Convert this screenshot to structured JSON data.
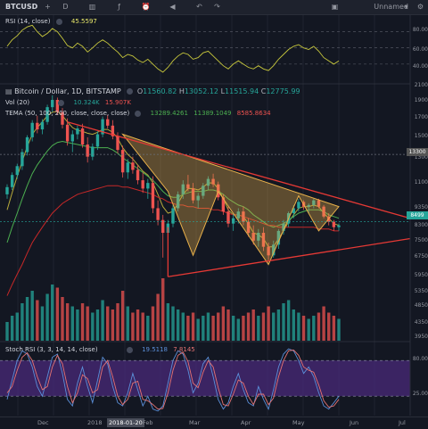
{
  "toolbar": {
    "symbol": "BTCUSD",
    "layout_name": "Unnamed",
    "icons": [
      "plus-icon",
      "interval-icon",
      "bars-style-icon",
      "fx-icon",
      "alert-icon",
      "replay-icon",
      "undo-icon",
      "redo-icon",
      "layout-icon"
    ]
  },
  "rsi": {
    "label": "RSI (14, close)",
    "value": "45.5597",
    "levels": [
      "80.00",
      "60.00",
      "40.00"
    ],
    "color": "#c8c83c"
  },
  "main": {
    "title": "Bitcoin / Dollar, 1D, BITSTAMP",
    "ohlc": [
      {
        "k": "O",
        "v": "11560.82"
      },
      {
        "k": "H",
        "v": "13052.12"
      },
      {
        "k": "L",
        "v": "11515.94"
      },
      {
        "k": "C",
        "v": "12775.99"
      }
    ],
    "vol_label": "Vol (20)",
    "vol_values": [
      "10.324K",
      "15.907K"
    ],
    "tema_label": "TEMA (50, 100, 200, close, close, close)",
    "tema_values": [
      "13289.4261",
      "11389.1049",
      "8585.8634"
    ],
    "price_ticks": [
      "2100",
      "1900",
      "1700",
      "1500",
      "1300",
      "1100",
      "9350",
      "8300",
      "7500",
      "6750",
      "5950",
      "5350",
      "4850",
      "4350",
      "3950"
    ],
    "price_tags": [
      "13300",
      "8499"
    ]
  },
  "stoch": {
    "label": "Stoch RSI (3, 3, 14, 14, close)",
    "values": [
      "19.5118",
      "7.8145"
    ],
    "levels": [
      "80.00",
      "25.00"
    ]
  },
  "time_axis": {
    "labels": [
      "Dec",
      "2018",
      "2018-01-20",
      "Feb",
      "Mar",
      "Apr",
      "May",
      "Jun",
      "Jul"
    ]
  },
  "colors": {
    "up": "#26a69a",
    "down": "#ef5350",
    "tema50": "#b5a83a",
    "tema100": "#4caf50",
    "tema200": "#c62828",
    "triangle": "#e53935",
    "pattern": "#e8b04a",
    "stoch_k": "#5b8fd9",
    "stoch_d": "#e57373"
  },
  "chart_data": {
    "type": "candlestick",
    "title": "Bitcoin / Dollar, 1D, BITSTAMP",
    "ylabel": "",
    "ylim": [
      3950,
      21000
    ],
    "ohlc": [
      [
        10200,
        10900,
        9900,
        10700
      ],
      [
        10700,
        11800,
        10500,
        11600
      ],
      [
        11600,
        12500,
        11300,
        12300
      ],
      [
        12300,
        13800,
        12000,
        13500
      ],
      [
        13500,
        15100,
        13200,
        14900
      ],
      [
        14900,
        16700,
        14500,
        16400
      ],
      [
        16400,
        17200,
        15300,
        15700
      ],
      [
        15700,
        16800,
        15200,
        16500
      ],
      [
        16500,
        18500,
        16200,
        18200
      ],
      [
        18200,
        19700,
        17600,
        19100
      ],
      [
        19100,
        19400,
        17300,
        17600
      ],
      [
        17600,
        18100,
        15800,
        16200
      ],
      [
        16200,
        16900,
        14100,
        14500
      ],
      [
        14500,
        15600,
        13500,
        15200
      ],
      [
        15200,
        16100,
        14700,
        15800
      ],
      [
        15800,
        16300,
        13900,
        14200
      ],
      [
        14200,
        14900,
        12600,
        13100
      ],
      [
        13100,
        14300,
        12800,
        14000
      ],
      [
        14000,
        15500,
        13700,
        15200
      ],
      [
        15200,
        17100,
        14900,
        16800
      ],
      [
        16800,
        17300,
        15800,
        16100
      ],
      [
        16100,
        16700,
        14700,
        15000
      ],
      [
        15000,
        15400,
        13400,
        13700
      ],
      [
        13700,
        14100,
        11400,
        11800
      ],
      [
        11800,
        12900,
        11300,
        12600
      ],
      [
        12600,
        13100,
        11700,
        12000
      ],
      [
        12000,
        12400,
        10900,
        11200
      ],
      [
        11200,
        11800,
        10300,
        10600
      ],
      [
        10600,
        11300,
        9900,
        11000
      ],
      [
        11000,
        11500,
        9000,
        9300
      ],
      [
        9300,
        9800,
        8300,
        8600
      ],
      [
        8600,
        8900,
        6700,
        7900
      ],
      [
        7900,
        8600,
        7500,
        8400
      ],
      [
        8400,
        9500,
        8200,
        9300
      ],
      [
        9300,
        10400,
        9100,
        10200
      ],
      [
        10200,
        11200,
        9900,
        10900
      ],
      [
        10900,
        11600,
        10400,
        10600
      ],
      [
        10600,
        11000,
        9600,
        9800
      ],
      [
        9800,
        10300,
        9300,
        10100
      ],
      [
        10100,
        11000,
        9900,
        10800
      ],
      [
        10800,
        11500,
        10500,
        11300
      ],
      [
        11300,
        11700,
        10700,
        10900
      ],
      [
        10900,
        11100,
        9800,
        10000
      ],
      [
        10000,
        10200,
        8900,
        9100
      ],
      [
        9100,
        9400,
        8200,
        8400
      ],
      [
        8400,
        9000,
        8000,
        8700
      ],
      [
        8700,
        9300,
        8400,
        9100
      ],
      [
        9100,
        9400,
        8300,
        8500
      ],
      [
        8500,
        8700,
        7700,
        7900
      ],
      [
        7900,
        8300,
        7300,
        7500
      ],
      [
        7500,
        8100,
        7200,
        7900
      ],
      [
        7900,
        8200,
        7000,
        7200
      ],
      [
        7200,
        7400,
        6600,
        6800
      ],
      [
        6800,
        7500,
        6700,
        7300
      ],
      [
        7300,
        8100,
        7100,
        8000
      ],
      [
        8000,
        8600,
        7800,
        8400
      ],
      [
        8400,
        9100,
        8200,
        9000
      ],
      [
        9000,
        9500,
        8700,
        9300
      ],
      [
        9300,
        9900,
        9100,
        9700
      ],
      [
        9700,
        9800,
        9200,
        9400
      ],
      [
        9400,
        9600,
        9000,
        9500
      ],
      [
        9500,
        9900,
        9300,
        9800
      ],
      [
        9800,
        9900,
        9300,
        9400
      ],
      [
        9400,
        9500,
        8700,
        8800
      ],
      [
        8800,
        9000,
        8300,
        8500
      ],
      [
        8500,
        8600,
        8000,
        8200
      ],
      [
        8200,
        8400,
        8000,
        8300
      ]
    ],
    "tema": [
      {
        "name": "TEMA 50",
        "values": [
          9200,
          10300,
          11500,
          12700,
          14000,
          15200,
          15900,
          16500,
          17200,
          17600,
          17700,
          17200,
          16500,
          15900,
          15600,
          15500,
          15300,
          15200,
          15400,
          15700,
          15700,
          15400,
          14800,
          13900,
          13300,
          12900,
          12400,
          11900,
          11600,
          11000,
          10200,
          9400,
          9000,
          9100,
          9600,
          10200,
          10600,
          10600,
          10500,
          10700,
          11000,
          11000,
          10600,
          9900,
          9200,
          8900,
          8900,
          8800,
          8400,
          7900,
          7800,
          7600,
          7200,
          7200,
          7600,
          8000,
          8500,
          8900,
          9300,
          9400,
          9400,
          9500,
          9400,
          9000,
          8700,
          8400,
          8300
        ]
      },
      {
        "name": "TEMA 100",
        "values": [
          7400,
          8200,
          9000,
          9900,
          10800,
          11700,
          12400,
          13000,
          13600,
          14100,
          14400,
          14500,
          14400,
          14300,
          14200,
          14100,
          14000,
          13900,
          13900,
          13900,
          13900,
          13700,
          13400,
          13000,
          12700,
          12400,
          12100,
          11800,
          11500,
          11200,
          10800,
          10400,
          10100,
          10000,
          10000,
          10200,
          10300,
          10400,
          10400,
          10400,
          10500,
          10500,
          10400,
          10200,
          9900,
          9700,
          9500,
          9400,
          9200,
          8900,
          8700,
          8500,
          8300,
          8200,
          8300,
          8400,
          8600,
          8800,
          9000,
          9100,
          9200,
          9200,
          9200,
          9100,
          8900,
          8800,
          8700
        ]
      },
      {
        "name": "TEMA 200",
        "values": [
          5200,
          5600,
          6000,
          6400,
          6900,
          7400,
          7800,
          8200,
          8600,
          9000,
          9300,
          9600,
          9800,
          10000,
          10200,
          10300,
          10400,
          10500,
          10600,
          10700,
          10800,
          10800,
          10800,
          10700,
          10700,
          10600,
          10500,
          10400,
          10300,
          10200,
          10000,
          9900,
          9700,
          9600,
          9500,
          9500,
          9400,
          9400,
          9300,
          9300,
          9300,
          9200,
          9200,
          9100,
          9000,
          8900,
          8900,
          8800,
          8700,
          8600,
          8500,
          8400,
          8300,
          8300,
          8200,
          8200,
          8200,
          8200,
          8200,
          8200,
          8200,
          8200,
          8100,
          8100,
          8100,
          8000,
          8000
        ]
      }
    ],
    "rsi": [
      62,
      70,
      75,
      82,
      86,
      88,
      80,
      74,
      78,
      84,
      80,
      72,
      63,
      60,
      66,
      62,
      55,
      60,
      66,
      70,
      66,
      60,
      55,
      48,
      52,
      50,
      45,
      42,
      46,
      40,
      34,
      30,
      36,
      44,
      50,
      54,
      52,
      46,
      48,
      54,
      56,
      50,
      44,
      38,
      34,
      40,
      44,
      40,
      36,
      34,
      38,
      34,
      32,
      38,
      46,
      52,
      58,
      62,
      64,
      60,
      58,
      62,
      56,
      48,
      44,
      40,
      44
    ],
    "stoch_k": [
      20,
      50,
      80,
      95,
      90,
      70,
      40,
      25,
      55,
      85,
      90,
      60,
      20,
      10,
      45,
      70,
      40,
      15,
      50,
      85,
      75,
      40,
      15,
      10,
      30,
      60,
      35,
      10,
      25,
      5,
      2,
      10,
      45,
      80,
      95,
      90,
      65,
      30,
      45,
      75,
      85,
      55,
      20,
      5,
      15,
      40,
      60,
      35,
      15,
      10,
      40,
      20,
      5,
      35,
      70,
      90,
      98,
      95,
      80,
      60,
      70,
      55,
      30,
      10,
      5,
      15,
      25
    ],
    "stoch_d": [
      30,
      40,
      65,
      85,
      92,
      80,
      55,
      35,
      40,
      70,
      88,
      75,
      40,
      15,
      30,
      58,
      52,
      30,
      35,
      70,
      80,
      55,
      25,
      12,
      20,
      45,
      48,
      20,
      18,
      12,
      5,
      6,
      30,
      65,
      88,
      93,
      78,
      45,
      38,
      62,
      80,
      70,
      38,
      12,
      10,
      28,
      50,
      45,
      25,
      12,
      28,
      28,
      12,
      22,
      55,
      80,
      95,
      96,
      88,
      70,
      65,
      62,
      42,
      18,
      8,
      10,
      20
    ],
    "volume": [
      30,
      40,
      45,
      60,
      70,
      80,
      65,
      55,
      75,
      90,
      85,
      70,
      60,
      55,
      50,
      60,
      55,
      45,
      50,
      65,
      55,
      50,
      60,
      80,
      55,
      45,
      50,
      45,
      40,
      55,
      75,
      100,
      60,
      55,
      50,
      45,
      40,
      45,
      35,
      40,
      45,
      40,
      45,
      55,
      50,
      40,
      35,
      40,
      45,
      50,
      40,
      45,
      55,
      45,
      50,
      60,
      65,
      50,
      45,
      40,
      35,
      40,
      45,
      55,
      45,
      40,
      35
    ],
    "annotations": [
      "symmetrical triangle",
      "inverse head and shoulders"
    ]
  }
}
